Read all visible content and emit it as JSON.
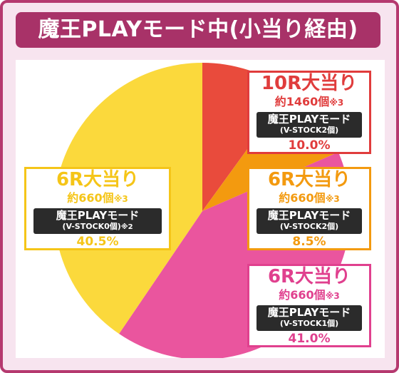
{
  "title": "魔王PLAYモード中(小当り経由)",
  "colors": {
    "frame_border": "#b5396f",
    "frame_bg": "#f7e4ef",
    "title_bg": "#a83268",
    "red": "#e94b3c",
    "orange": "#f39a0f",
    "pink": "#ea559e",
    "yellow": "#fbd93c"
  },
  "chart_data": {
    "type": "pie",
    "start": "top, clockwise",
    "slices": [
      {
        "label": "10R大当り",
        "value": 10.0,
        "color": "#e94b3c"
      },
      {
        "label": "6R大当り",
        "value": 8.5,
        "color": "#f39a0f"
      },
      {
        "label": "6R大当り",
        "value": 41.0,
        "color": "#ea559e"
      },
      {
        "label": "6R大当り",
        "value": 40.5,
        "color": "#fbd93c"
      }
    ]
  },
  "boxes": {
    "b10r": {
      "title": "10R大当り",
      "count": "約1460個",
      "count_note": "※3",
      "mode": "魔王PLAYモード",
      "stock": "(V-STOCK2個)",
      "stock_note": "",
      "percent": "10.0%",
      "color": "#e03c3c",
      "pct_color": "#e03c3c"
    },
    "b6r_orange": {
      "title": "6R大当り",
      "count": "約660個",
      "count_note": "※3",
      "mode": "魔王PLAYモード",
      "stock": "(V-STOCK2個)",
      "stock_note": "",
      "percent": "8.5%",
      "color": "#f39a0f",
      "pct_color": "#f39a0f"
    },
    "b6r_pink": {
      "title": "6R大当り",
      "count": "約660個",
      "count_note": "※3",
      "mode": "魔王PLAYモード",
      "stock": "(V-STOCK1個)",
      "stock_note": "",
      "percent": "41.0%",
      "color": "#e0408e",
      "pct_color": "#e0408e"
    },
    "b6r_yellow": {
      "title": "6R大当り",
      "count": "約660個",
      "count_note": "※3",
      "mode": "魔王PLAYモード",
      "stock": "(V-STOCK0個)",
      "stock_note": "※2",
      "percent": "40.5%",
      "color": "#f5c518",
      "pct_color": "#f5c518"
    }
  }
}
